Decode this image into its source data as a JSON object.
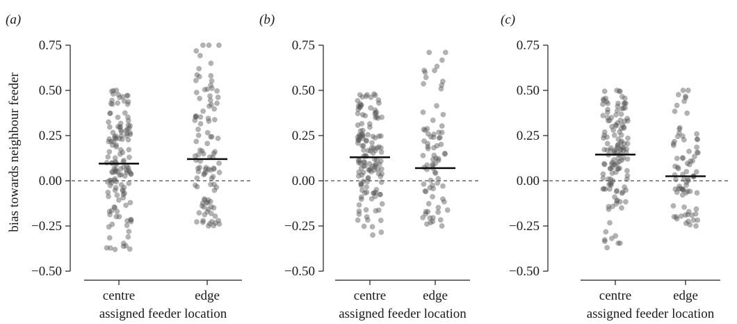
{
  "chart_data": {
    "type": "scatter",
    "ylabel": "bias towards neighbour feeder",
    "xlabel": "assigned feeder location",
    "categories": [
      "centre",
      "edge"
    ],
    "ylim": [
      -0.55,
      0.8
    ],
    "yticks": [
      -0.5,
      -0.25,
      0,
      0.25,
      0.5,
      0.75
    ],
    "ytick_labels": [
      "−0.50",
      "−0.25",
      "0.00",
      "0.25",
      "0.50",
      "0.75"
    ],
    "reference_line": {
      "y": 0,
      "style": "dashed"
    },
    "panels": [
      {
        "label": "(a)",
        "means": {
          "centre": 0.095,
          "edge": 0.12
        },
        "ranges": {
          "centre": [
            -0.38,
            0.5
          ],
          "edge": [
            -0.25,
            0.75
          ]
        },
        "n": {
          "centre": 140,
          "edge": 105
        },
        "upper_points": {
          "edge": [
            0.75,
            0.75,
            0.65,
            0.62
          ]
        }
      },
      {
        "label": "(b)",
        "means": {
          "centre": 0.13,
          "edge": 0.07
        },
        "ranges": {
          "centre": [
            -0.3,
            0.48
          ],
          "edge": [
            -0.25,
            0.71
          ]
        },
        "n": {
          "centre": 140,
          "edge": 80
        },
        "upper_points": {
          "edge": [
            0.71,
            0.61,
            0.6,
            0.55
          ]
        }
      },
      {
        "label": "(c)",
        "means": {
          "centre": 0.145,
          "edge": 0.025
        },
        "ranges": {
          "centre": [
            -0.37,
            0.5
          ],
          "edge": [
            -0.25,
            0.5
          ]
        },
        "n": {
          "centre": 140,
          "edge": 80
        },
        "upper_points": {
          "edge": [
            0.5,
            0.46,
            0.44
          ]
        }
      }
    ]
  }
}
